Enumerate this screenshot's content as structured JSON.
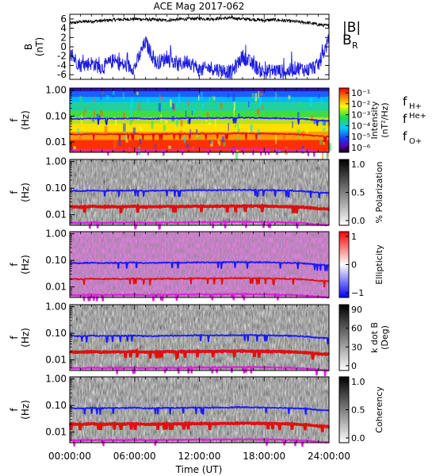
{
  "title": "ACE Mag 2017-062",
  "colors": {
    "B_total": "#000000",
    "B_R": "#1a1adc",
    "f_H": "#1a1aff",
    "f_He": "#e01010",
    "f_O": "#e020e0"
  },
  "x_axis": {
    "label": "Time (UT)",
    "ticks": [
      "00:00:00",
      "06:00:00",
      "12:00:00",
      "18:00:00",
      "24:00:00"
    ],
    "range_hours": [
      0,
      24
    ]
  },
  "chart_data": [
    {
      "type": "line",
      "ylabel": "B\n(nT)",
      "ylim": [
        -7,
        7
      ],
      "yticks": [
        "6",
        "4",
        "2",
        "0",
        "-2",
        "-4",
        "-6"
      ],
      "legend": [
        "|B|",
        "B_R"
      ],
      "legend_placement": "right",
      "series": [
        {
          "name": "|B|",
          "x_hours": [
            0,
            1,
            2,
            3,
            4,
            5,
            6,
            7,
            8,
            9,
            10,
            11,
            12,
            13,
            14,
            15,
            16,
            17,
            18,
            19,
            20,
            21,
            22,
            23,
            24
          ],
          "values": [
            5.0,
            5.4,
            5.5,
            5.6,
            5.8,
            5.9,
            6.0,
            5.9,
            5.8,
            5.7,
            5.9,
            6.0,
            6.1,
            6.0,
            6.1,
            6.2,
            6.0,
            5.9,
            5.7,
            5.8,
            5.6,
            5.4,
            5.2,
            4.8,
            4.5
          ]
        },
        {
          "name": "B_R",
          "x_hours": [
            0,
            1,
            2,
            3,
            4,
            5,
            6,
            7,
            8,
            9,
            10,
            11,
            12,
            13,
            14,
            15,
            16,
            17,
            18,
            19,
            20,
            21,
            22,
            23,
            24
          ],
          "values": [
            -1.5,
            -4.0,
            -3.5,
            -4.5,
            -3.0,
            -4.0,
            -4.5,
            1.0,
            -3.5,
            -2.5,
            -4.0,
            -3.0,
            -5.0,
            -4.5,
            -5.0,
            -5.5,
            -2.0,
            -4.0,
            -5.5,
            -5.0,
            -5.5,
            -4.5,
            -5.0,
            -4.0,
            1.5
          ]
        }
      ]
    },
    {
      "type": "heatmap",
      "ylabel": "f\n(Hz)",
      "ylim": [
        0.004,
        1.2
      ],
      "yscale": "log",
      "yticks": [
        "1.00",
        "0.10",
        "0.01"
      ],
      "colorbar": {
        "label": "Intensity\n(nT²/Hz)",
        "ticks": [
          "10⁻¹",
          "10⁻²",
          "10⁻³",
          "10⁻⁴",
          "10⁻⁵",
          "10⁻⁶"
        ],
        "scale": "rainbow"
      },
      "gyrofrequency_legend": [
        "f_H+",
        "f_He+",
        "f_O+"
      ]
    },
    {
      "type": "heatmap",
      "ylabel": "f\n(Hz)",
      "ylim": [
        0.004,
        1.2
      ],
      "yscale": "log",
      "yticks": [
        "1.00",
        "0.10",
        "0.01"
      ],
      "colorbar": {
        "label": "% Polarization",
        "ticks": [
          "1.0",
          "0.5",
          "0.0"
        ],
        "scale": "grey"
      }
    },
    {
      "type": "heatmap",
      "ylabel": "f\n(Hz)",
      "ylim": [
        0.004,
        1.2
      ],
      "yscale": "log",
      "yticks": [
        "1.00",
        "0.10",
        "0.01"
      ],
      "colorbar": {
        "label": "Ellipticity",
        "ticks": [
          "1",
          "0",
          "−1"
        ],
        "scale": "bwr"
      }
    },
    {
      "type": "heatmap",
      "ylabel": "f\n(Hz)",
      "ylim": [
        0.004,
        1.2
      ],
      "yscale": "log",
      "yticks": [
        "1.00",
        "0.10",
        "0.01"
      ],
      "colorbar": {
        "label": "k dot B\n(Deg)",
        "ticks": [
          "90",
          "60",
          "30",
          "0"
        ],
        "scale": "grey"
      }
    },
    {
      "type": "heatmap",
      "ylabel": "f\n(Hz)",
      "ylim": [
        0.004,
        1.2
      ],
      "yscale": "log",
      "yticks": [
        "1.00",
        "0.10",
        "0.01"
      ],
      "colorbar": {
        "label": "Coherency",
        "ticks": [
          "1.0",
          "0.5",
          "0.0"
        ],
        "scale": "grey"
      }
    }
  ],
  "gyrofrequencies": {
    "x_hours": [
      0,
      1,
      2,
      3,
      4,
      5,
      6,
      7,
      8,
      9,
      10,
      11,
      12,
      13,
      14,
      15,
      16,
      17,
      18,
      19,
      20,
      21,
      22,
      23,
      24
    ],
    "f_H": [
      0.08,
      0.078,
      0.082,
      0.079,
      0.081,
      0.08,
      0.083,
      0.078,
      0.08,
      0.082,
      0.081,
      0.083,
      0.084,
      0.083,
      0.084,
      0.085,
      0.086,
      0.085,
      0.084,
      0.083,
      0.081,
      0.079,
      0.075,
      0.068,
      0.065
    ]
  }
}
